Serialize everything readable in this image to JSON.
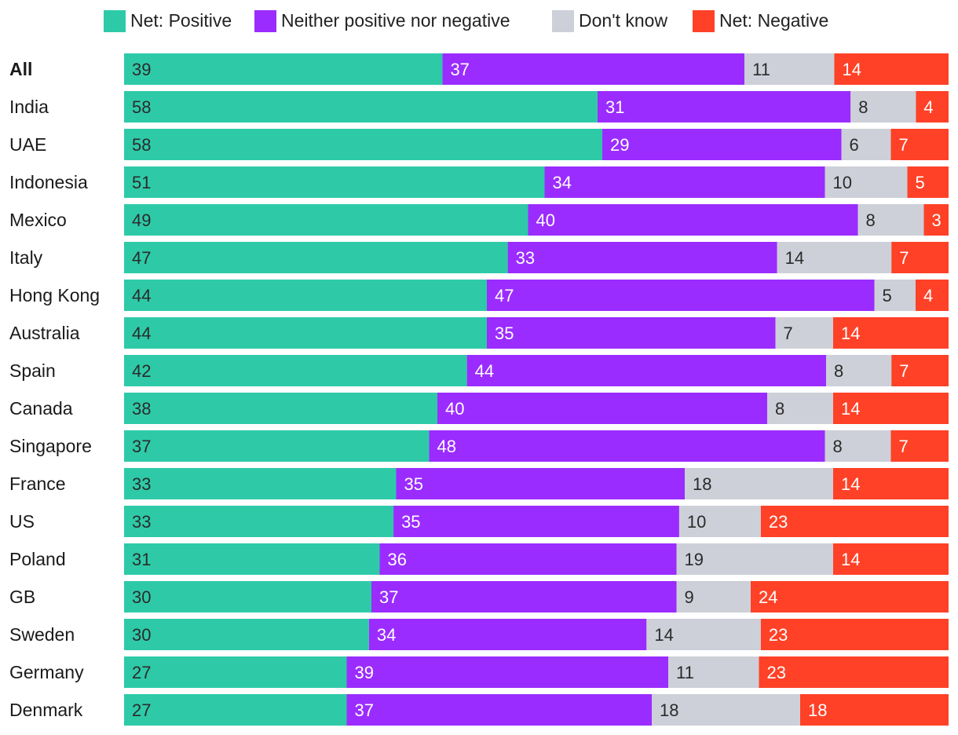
{
  "chart_data": {
    "type": "bar",
    "orientation": "horizontal",
    "stacked": true,
    "normalized": true,
    "title": "",
    "xlabel": "",
    "ylabel": "",
    "legend_position": "top",
    "grid": false,
    "categories": [
      "All",
      "India",
      "UAE",
      "Indonesia",
      "Mexico",
      "Italy",
      "Hong Kong",
      "Australia",
      "Spain",
      "Canada",
      "Singapore",
      "France",
      "US",
      "Poland",
      "GB",
      "Sweden",
      "Germany",
      "Denmark"
    ],
    "bold_categories": [
      "All"
    ],
    "series": [
      {
        "name": "Net: Positive",
        "color": "#2ecaa8",
        "label_color": "#2b2b2b",
        "values": [
          39,
          58,
          58,
          51,
          49,
          47,
          44,
          44,
          42,
          38,
          37,
          33,
          33,
          31,
          30,
          30,
          27,
          27
        ]
      },
      {
        "name": "Neither positive nor negative",
        "color": "#9b2cff",
        "label_color": "#ffffff",
        "values": [
          37,
          31,
          29,
          34,
          40,
          33,
          47,
          35,
          44,
          40,
          48,
          35,
          35,
          36,
          37,
          34,
          39,
          37
        ]
      },
      {
        "name": "Don't know",
        "color": "#cdd0d8",
        "label_color": "#2b2b2b",
        "values": [
          11,
          8,
          6,
          10,
          8,
          14,
          5,
          7,
          8,
          8,
          8,
          18,
          10,
          19,
          9,
          14,
          11,
          18
        ]
      },
      {
        "name": "Net: Negative",
        "color": "#ff4127",
        "label_color": "#ffffff",
        "values": [
          14,
          4,
          7,
          5,
          3,
          7,
          4,
          14,
          7,
          14,
          7,
          14,
          23,
          14,
          24,
          23,
          23,
          18
        ]
      }
    ]
  }
}
